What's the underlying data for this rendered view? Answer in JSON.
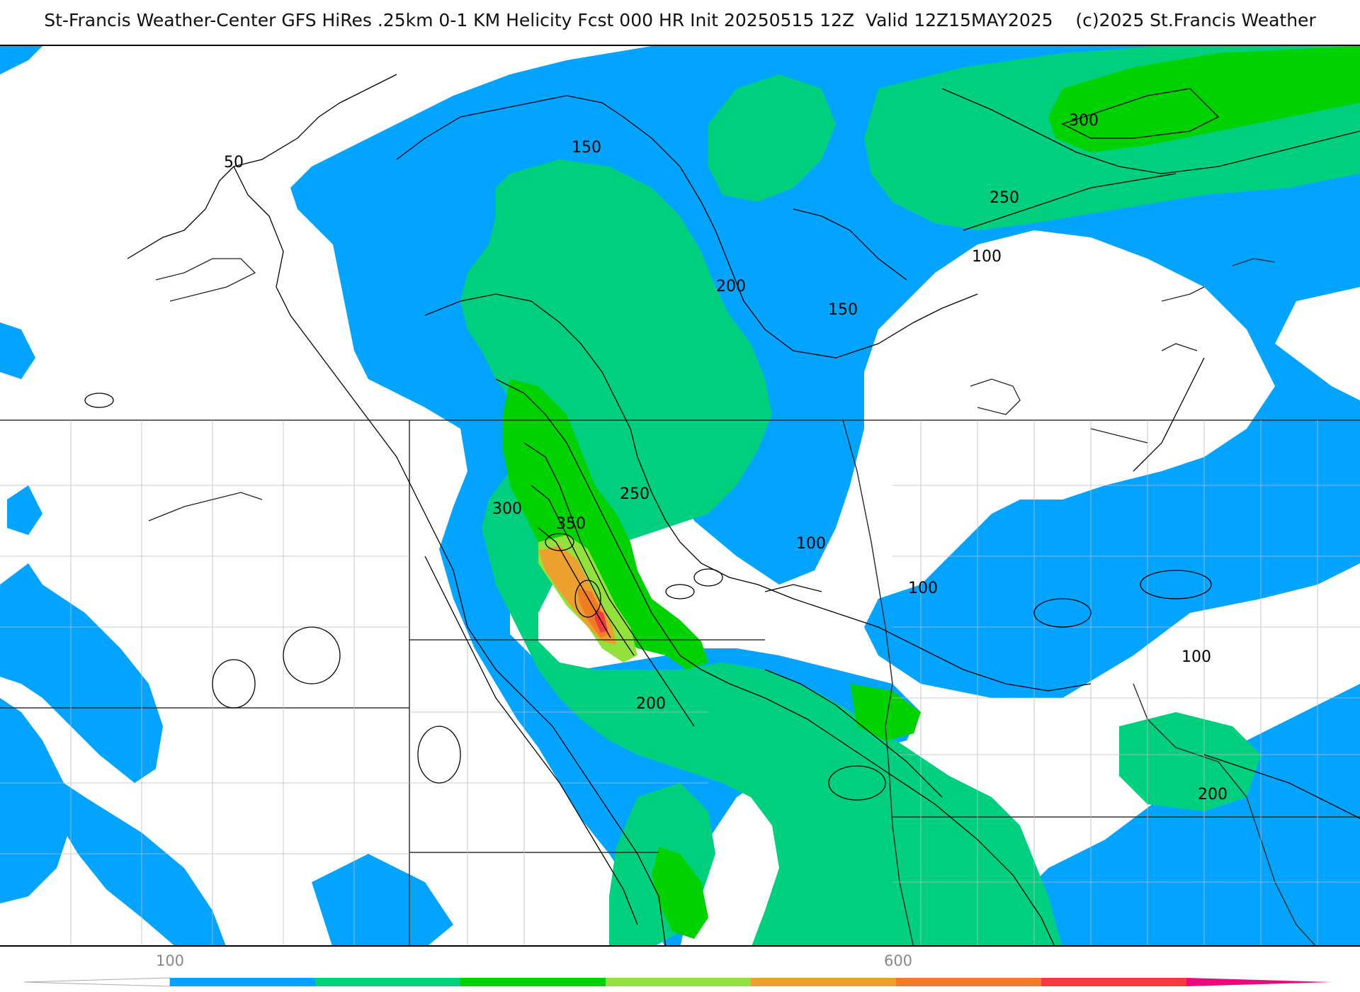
{
  "title": "St-Francis Weather-Center GFS HiRes .25km 0-1 KM Helicity Fcst 000 HR Init 20250515 12Z  Valid 12Z15MAY2025    (c)2025 St.Francis Weather",
  "colorbar": {
    "tick_labels": [
      "100",
      "600"
    ],
    "colors": [
      "#03a4ff",
      "#00cf7d",
      "#00d200",
      "#93e13d",
      "#eca02d",
      "#f07c23",
      "#f03c42",
      "#ea0a7c"
    ]
  },
  "fill_colors": {
    "c100": "#03a4ff",
    "c150": "#00cf7d",
    "c200": "#00d200",
    "c250": "#93e13d",
    "c300": "#eca02d",
    "c350": "#f07c23",
    "c400": "#f03c42",
    "c450": "#ea0a7c"
  },
  "contour_labels": [
    "50",
    "150",
    "200",
    "150",
    "100",
    "250",
    "300",
    "300",
    "350",
    "250",
    "100",
    "100",
    "200",
    "100",
    "200"
  ]
}
